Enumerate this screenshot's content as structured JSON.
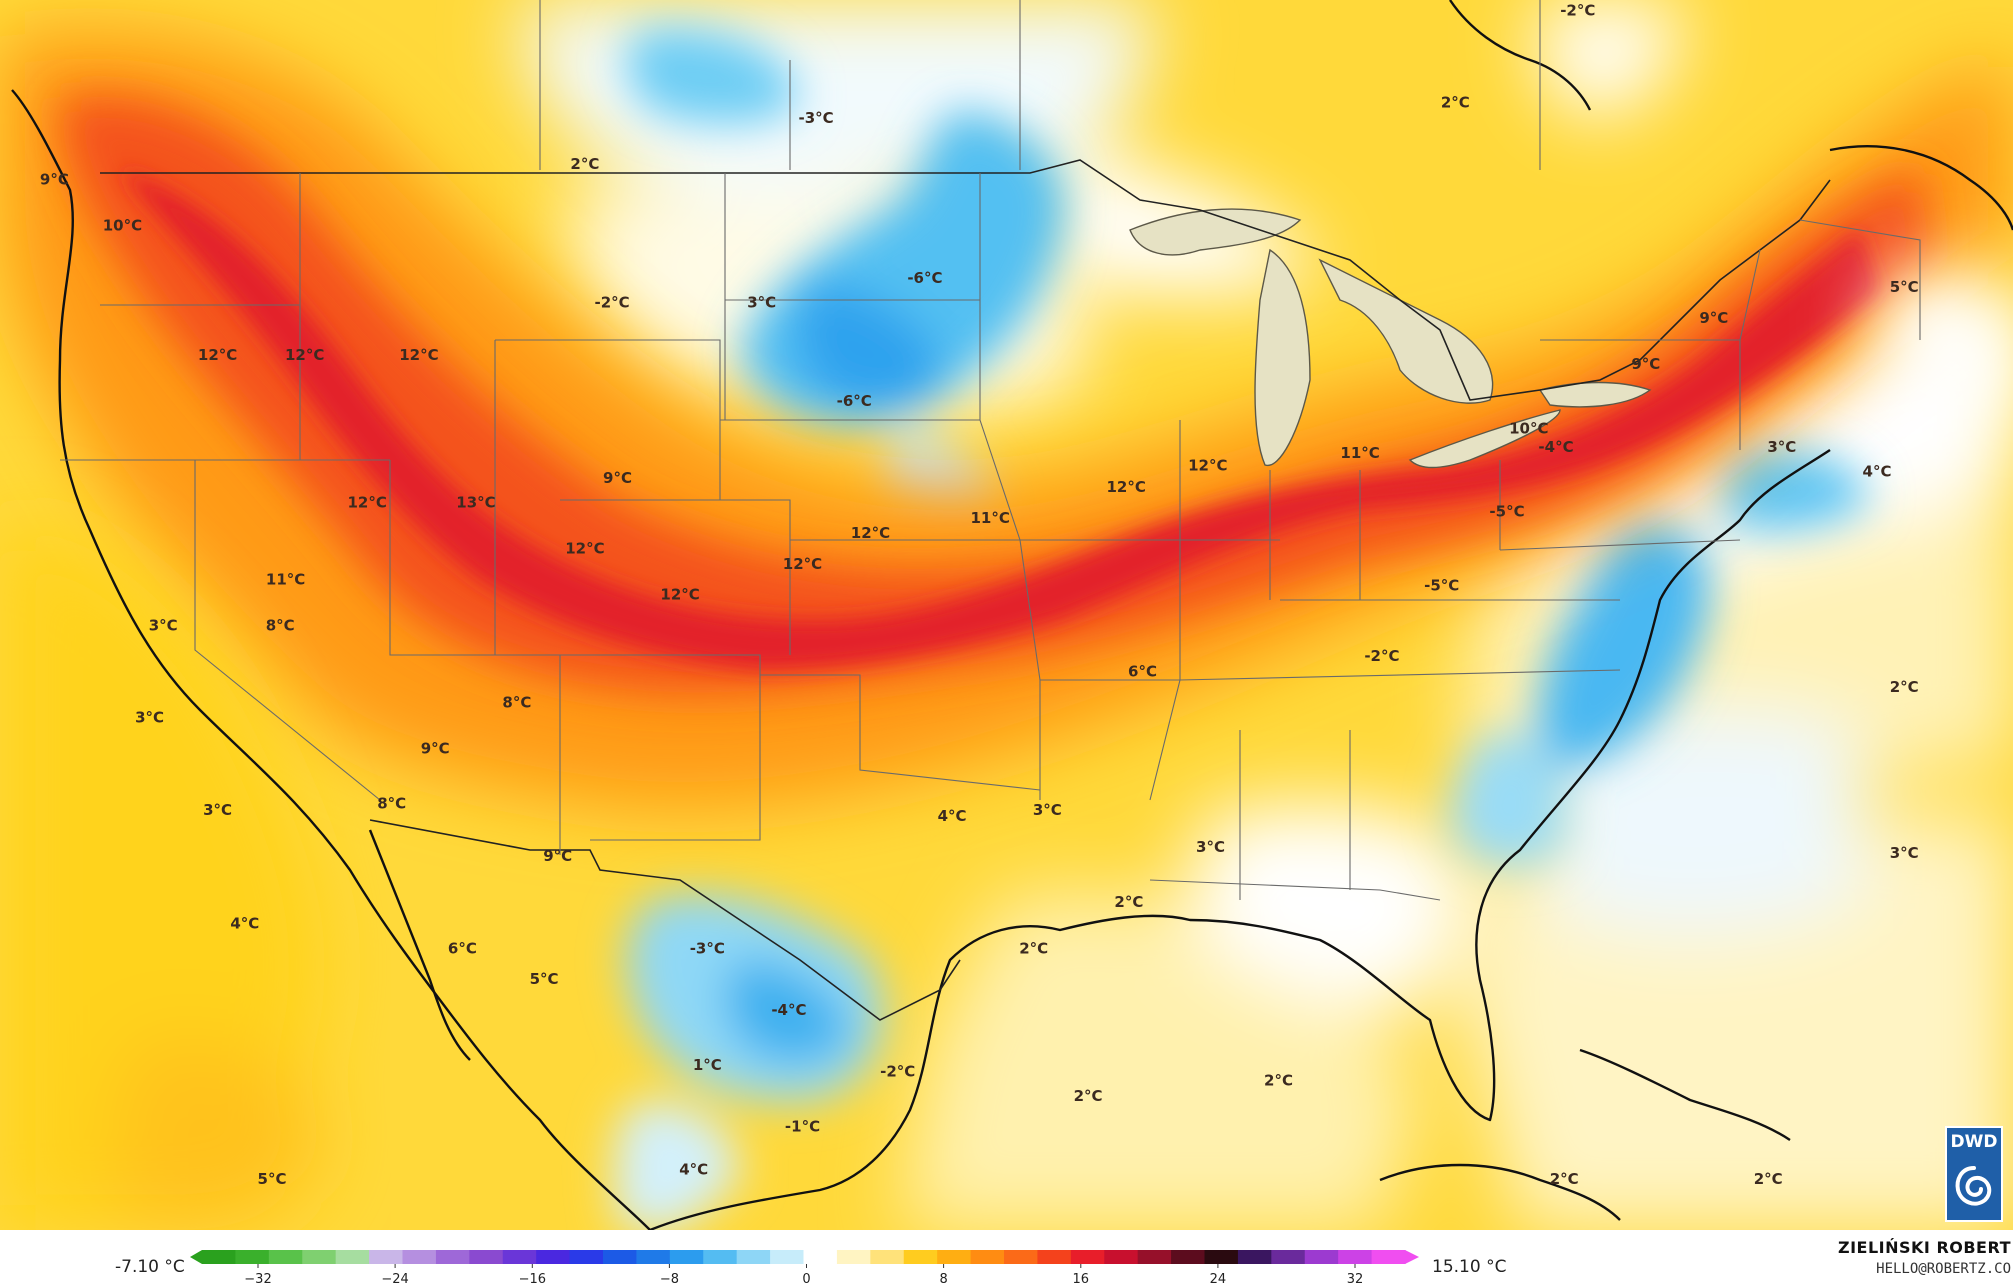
{
  "map": {
    "temperature_labels": [
      {
        "text": "9°C",
        "lon": -128.0,
        "lat": 50.5
      },
      {
        "text": "10°C",
        "lon": -125.5,
        "lat": 49.0
      },
      {
        "text": "2°C",
        "lon": -108.5,
        "lat": 51.0
      },
      {
        "text": "-3°C",
        "lon": -100.0,
        "lat": 52.5
      },
      {
        "text": "-2°C",
        "lon": -107.5,
        "lat": 46.5
      },
      {
        "text": "3°C",
        "lon": -102.0,
        "lat": 46.5
      },
      {
        "text": "-6°C",
        "lon": -96.0,
        "lat": 47.3
      },
      {
        "text": "-6°C",
        "lon": -98.6,
        "lat": 43.3
      },
      {
        "text": "-2°C",
        "lon": -72.0,
        "lat": 56.0
      },
      {
        "text": "2°C",
        "lon": -76.5,
        "lat": 53.0
      },
      {
        "text": "9°C",
        "lon": -67.0,
        "lat": 46.0
      },
      {
        "text": "5°C",
        "lon": -60.0,
        "lat": 47.0
      },
      {
        "text": "9°C",
        "lon": -69.5,
        "lat": 44.5
      },
      {
        "text": "10°C",
        "lon": -73.8,
        "lat": 42.4
      },
      {
        "text": "4°C",
        "lon": -61.0,
        "lat": 41.0
      },
      {
        "text": "12°C",
        "lon": -122.0,
        "lat": 44.8
      },
      {
        "text": "12°C",
        "lon": -118.8,
        "lat": 44.8
      },
      {
        "text": "12°C",
        "lon": -114.6,
        "lat": 44.8
      },
      {
        "text": "12°C",
        "lon": -116.5,
        "lat": 40.0
      },
      {
        "text": "13°C",
        "lon": -112.5,
        "lat": 40.0
      },
      {
        "text": "9°C",
        "lon": -107.3,
        "lat": 40.8
      },
      {
        "text": "12°C",
        "lon": -108.5,
        "lat": 38.5
      },
      {
        "text": "11°C",
        "lon": -119.5,
        "lat": 37.5
      },
      {
        "text": "3°C",
        "lon": -124.0,
        "lat": 36.0
      },
      {
        "text": "8°C",
        "lon": -119.7,
        "lat": 36.0
      },
      {
        "text": "3°C",
        "lon": -124.5,
        "lat": 33.0
      },
      {
        "text": "8°C",
        "lon": -111.0,
        "lat": 33.5
      },
      {
        "text": "9°C",
        "lon": -114.0,
        "lat": 32.0
      },
      {
        "text": "12°C",
        "lon": -105.0,
        "lat": 37.0
      },
      {
        "text": "12°C",
        "lon": -100.5,
        "lat": 38.0
      },
      {
        "text": "12°C",
        "lon": -98.0,
        "lat": 39.0
      },
      {
        "text": "11°C",
        "lon": -93.6,
        "lat": 39.5
      },
      {
        "text": "12°C",
        "lon": -88.6,
        "lat": 40.5
      },
      {
        "text": "12°C",
        "lon": -85.6,
        "lat": 41.2
      },
      {
        "text": "11°C",
        "lon": -80.0,
        "lat": 41.6
      },
      {
        "text": "-4°C",
        "lon": -72.8,
        "lat": 41.8
      },
      {
        "text": "3°C",
        "lon": -64.5,
        "lat": 41.8
      },
      {
        "text": "-5°C",
        "lon": -74.6,
        "lat": 39.7
      },
      {
        "text": "-5°C",
        "lon": -77.0,
        "lat": 37.3
      },
      {
        "text": "-2°C",
        "lon": -79.2,
        "lat": 35.0
      },
      {
        "text": "6°C",
        "lon": -88.0,
        "lat": 34.5
      },
      {
        "text": "4°C",
        "lon": -95.0,
        "lat": 29.8
      },
      {
        "text": "3°C",
        "lon": -91.5,
        "lat": 30.0
      },
      {
        "text": "3°C",
        "lon": -85.5,
        "lat": 28.8
      },
      {
        "text": "2°C",
        "lon": -60.0,
        "lat": 34.0
      },
      {
        "text": "3°C",
        "lon": -60.0,
        "lat": 28.6
      },
      {
        "text": "3°C",
        "lon": -122.0,
        "lat": 30.0
      },
      {
        "text": "8°C",
        "lon": -115.6,
        "lat": 30.2
      },
      {
        "text": "9°C",
        "lon": -109.5,
        "lat": 28.5
      },
      {
        "text": "4°C",
        "lon": -121.0,
        "lat": 26.3
      },
      {
        "text": "6°C",
        "lon": -113.0,
        "lat": 25.5
      },
      {
        "text": "5°C",
        "lon": -110.0,
        "lat": 24.5
      },
      {
        "text": "-3°C",
        "lon": -104.0,
        "lat": 25.5
      },
      {
        "text": "-4°C",
        "lon": -101.0,
        "lat": 23.5
      },
      {
        "text": "2°C",
        "lon": -92.0,
        "lat": 25.5
      },
      {
        "text": "2°C",
        "lon": -88.5,
        "lat": 27.0
      },
      {
        "text": "1°C",
        "lon": -104.0,
        "lat": 21.7
      },
      {
        "text": "-2°C",
        "lon": -97.0,
        "lat": 21.5
      },
      {
        "text": "2°C",
        "lon": -83.0,
        "lat": 21.2
      },
      {
        "text": "2°C",
        "lon": -90.0,
        "lat": 20.7
      },
      {
        "text": "-1°C",
        "lon": -100.5,
        "lat": 19.7
      },
      {
        "text": "4°C",
        "lon": -104.5,
        "lat": 18.3
      },
      {
        "text": "5°C",
        "lon": -120.0,
        "lat": 18.0
      },
      {
        "text": "2°C",
        "lon": -72.5,
        "lat": 18.0
      },
      {
        "text": "2°C",
        "lon": -65.0,
        "lat": 18.0
      }
    ]
  },
  "legend": {
    "min_label": "-7.10 °C",
    "max_label": "15.10 °C",
    "ticks": [
      "−32",
      "−24",
      "−16",
      "−8",
      "0",
      "8",
      "16",
      "24",
      "32"
    ],
    "colors": [
      "#2aa11e",
      "#3ab02c",
      "#59c24a",
      "#7fd070",
      "#a6dda0",
      "#c9b6e8",
      "#b58fe0",
      "#9e68d8",
      "#8a4ad0",
      "#6a36d8",
      "#4a28e0",
      "#2a3ae8",
      "#1c5ae6",
      "#1f7ae8",
      "#2c9cee",
      "#54bcf2",
      "#8ed6f6",
      "#c7ecfa",
      "#ffffff",
      "#fff4c2",
      "#ffe27a",
      "#ffcc1f",
      "#ffae12",
      "#ff8c12",
      "#fb6a18",
      "#f4421c",
      "#e81e2a",
      "#c8102e",
      "#96102a",
      "#5c0c1e",
      "#2a0a10",
      "#3a1660",
      "#6a2a9c",
      "#9c3ad0",
      "#cc42e6",
      "#f04ef0"
    ]
  },
  "credit": {
    "name": "ZIELIŃSKI ROBERT",
    "email": "HELLO@ROBERTZ.CO"
  },
  "logo": {
    "text": "DWD"
  }
}
